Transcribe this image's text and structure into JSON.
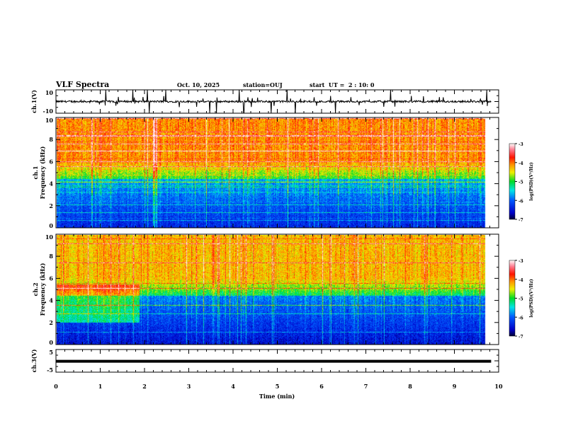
{
  "header": {
    "title": "VLF Spectra",
    "date": "Oct. 10, 2025",
    "station": "station=OUJ",
    "start": "start  UT =  2 : 10: 0"
  },
  "colors": {
    "axis": "#000000",
    "background": "#ffffff"
  },
  "chart_data": [
    {
      "type": "line",
      "name": "ch1-waveform",
      "ylabel": "ch.1(V)",
      "ylim": [
        -10,
        10
      ],
      "yticks": [
        "10",
        "-10"
      ],
      "xlim": [
        0,
        10
      ],
      "data_end_min": 9.83
    },
    {
      "type": "heatmap",
      "name": "ch1-spectrogram",
      "ylabel": "ch.1\nFrequency  (kHz)",
      "ylabel_lines": [
        "ch.1",
        "Frequency  (kHz)"
      ],
      "ylim": [
        0,
        10
      ],
      "yticks": [
        "0",
        "2",
        "4",
        "6",
        "8",
        "10"
      ],
      "xlim": [
        0,
        10
      ],
      "colorbar": {
        "label": "log(PSD)(V²/Hz)",
        "range": [
          -7,
          -3
        ],
        "ticks": [
          "-3",
          "-4",
          "-5",
          "-6",
          "-7"
        ]
      }
    },
    {
      "type": "heatmap",
      "name": "ch2-spectrogram",
      "ylabel_lines": [
        "ch.2",
        "Frequency  (kHz)"
      ],
      "ylim": [
        0,
        10
      ],
      "yticks": [
        "0",
        "2",
        "4",
        "6",
        "8",
        "10"
      ],
      "xlim": [
        0,
        10
      ],
      "colorbar": {
        "label": "log(PSD)(V²/Hz)",
        "range": [
          -7,
          -3
        ],
        "ticks": [
          "-3",
          "-4",
          "-5",
          "-6",
          "-7"
        ]
      }
    },
    {
      "type": "line",
      "name": "ch3-waveform",
      "ylabel": "ch.3(V)",
      "ylim": [
        -5,
        5
      ],
      "yticks": [
        "5",
        "-5"
      ],
      "xlim": [
        0,
        10
      ],
      "constant_value": -0.2
    }
  ],
  "xaxis": {
    "label": "Time  (min)",
    "ticks": [
      "0",
      "1",
      "2",
      "3",
      "4",
      "5",
      "6",
      "7",
      "8",
      "9",
      "10"
    ]
  }
}
